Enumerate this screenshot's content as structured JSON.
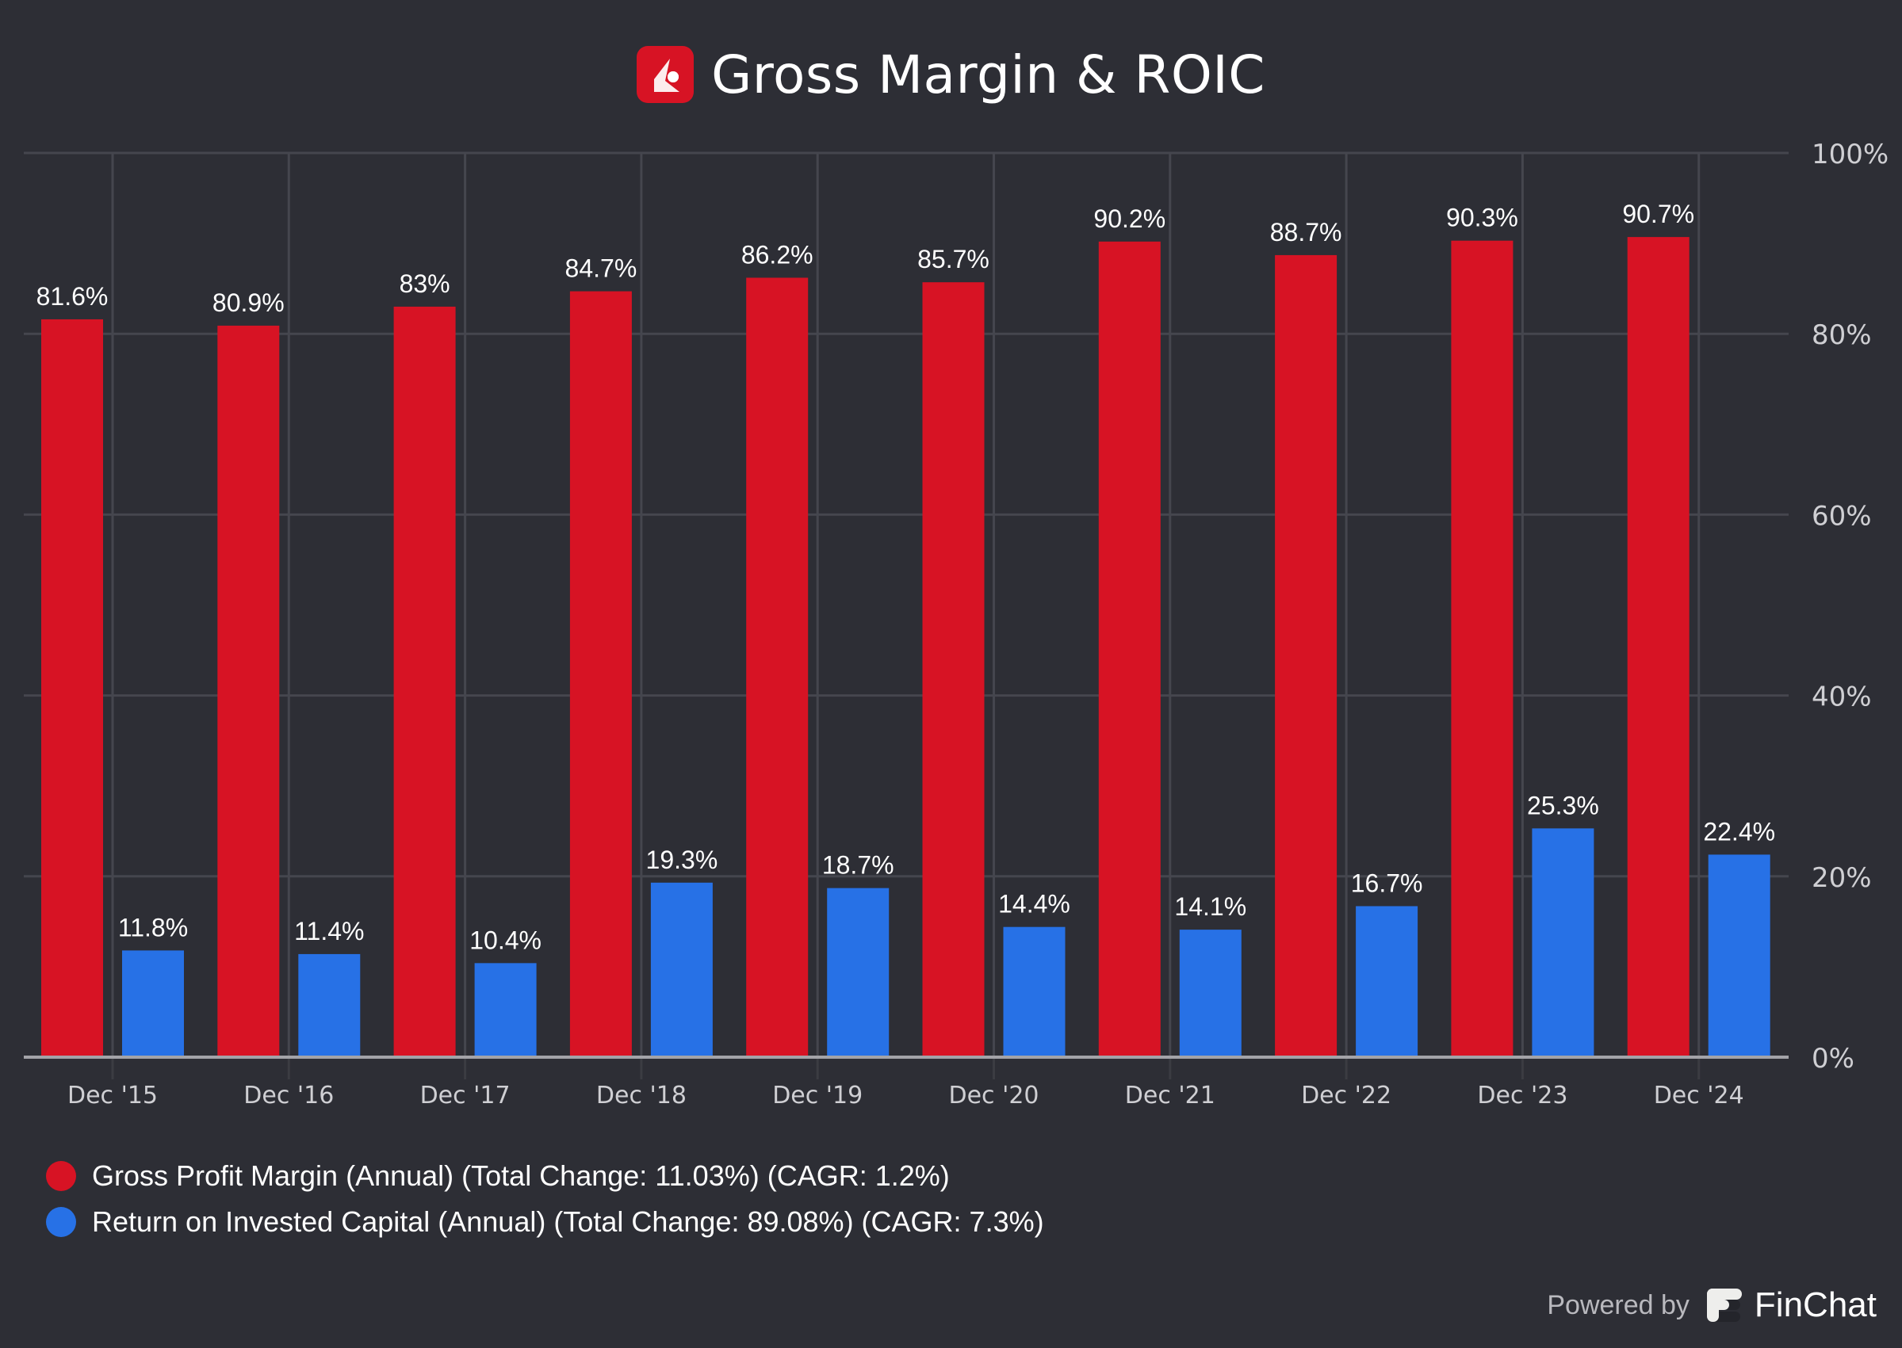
{
  "header": {
    "title": "Gross Margin & ROIC",
    "logo_icon": "company-logo-icon"
  },
  "chart_data": {
    "type": "bar",
    "title": "Gross Margin & ROIC",
    "xlabel": "",
    "ylabel": "",
    "categories": [
      "Dec '15",
      "Dec '16",
      "Dec '17",
      "Dec '18",
      "Dec '19",
      "Dec '20",
      "Dec '21",
      "Dec '22",
      "Dec '23",
      "Dec '24"
    ],
    "series": [
      {
        "name": "Gross Profit Margin (Annual)",
        "color": "#d71324",
        "values": [
          81.6,
          80.9,
          83,
          84.7,
          86.2,
          85.7,
          90.2,
          88.7,
          90.3,
          90.7
        ],
        "labels": [
          "81.6%",
          "80.9%",
          "83%",
          "84.7%",
          "86.2%",
          "85.7%",
          "90.2%",
          "88.7%",
          "90.3%",
          "90.7%"
        ]
      },
      {
        "name": "Return on Invested Capital (Annual)",
        "color": "#2771e6",
        "values": [
          11.8,
          11.4,
          10.4,
          19.3,
          18.7,
          14.4,
          14.1,
          16.7,
          25.3,
          22.4
        ],
        "labels": [
          "11.8%",
          "11.4%",
          "10.4%",
          "19.3%",
          "18.7%",
          "14.4%",
          "14.1%",
          "16.7%",
          "25.3%",
          "22.4%"
        ]
      }
    ],
    "ylim": [
      0,
      100
    ],
    "yticks": [
      0,
      20,
      40,
      60,
      80,
      100
    ],
    "ytick_labels": [
      "0%",
      "20%",
      "40%",
      "60%",
      "80%",
      "100%"
    ],
    "y_axis_side": "right",
    "grid": true,
    "legend_position": "bottom-left",
    "legend": [
      {
        "label": "Gross Profit Margin (Annual) (Total Change: 11.03%) (CAGR: 1.2%)",
        "color": "#d71324"
      },
      {
        "label": "Return on Invested Capital (Annual) (Total Change: 89.08%) (CAGR: 7.3%)",
        "color": "#2771e6"
      }
    ]
  },
  "footer": {
    "powered_by": "Powered by",
    "brand": "FinChat"
  }
}
